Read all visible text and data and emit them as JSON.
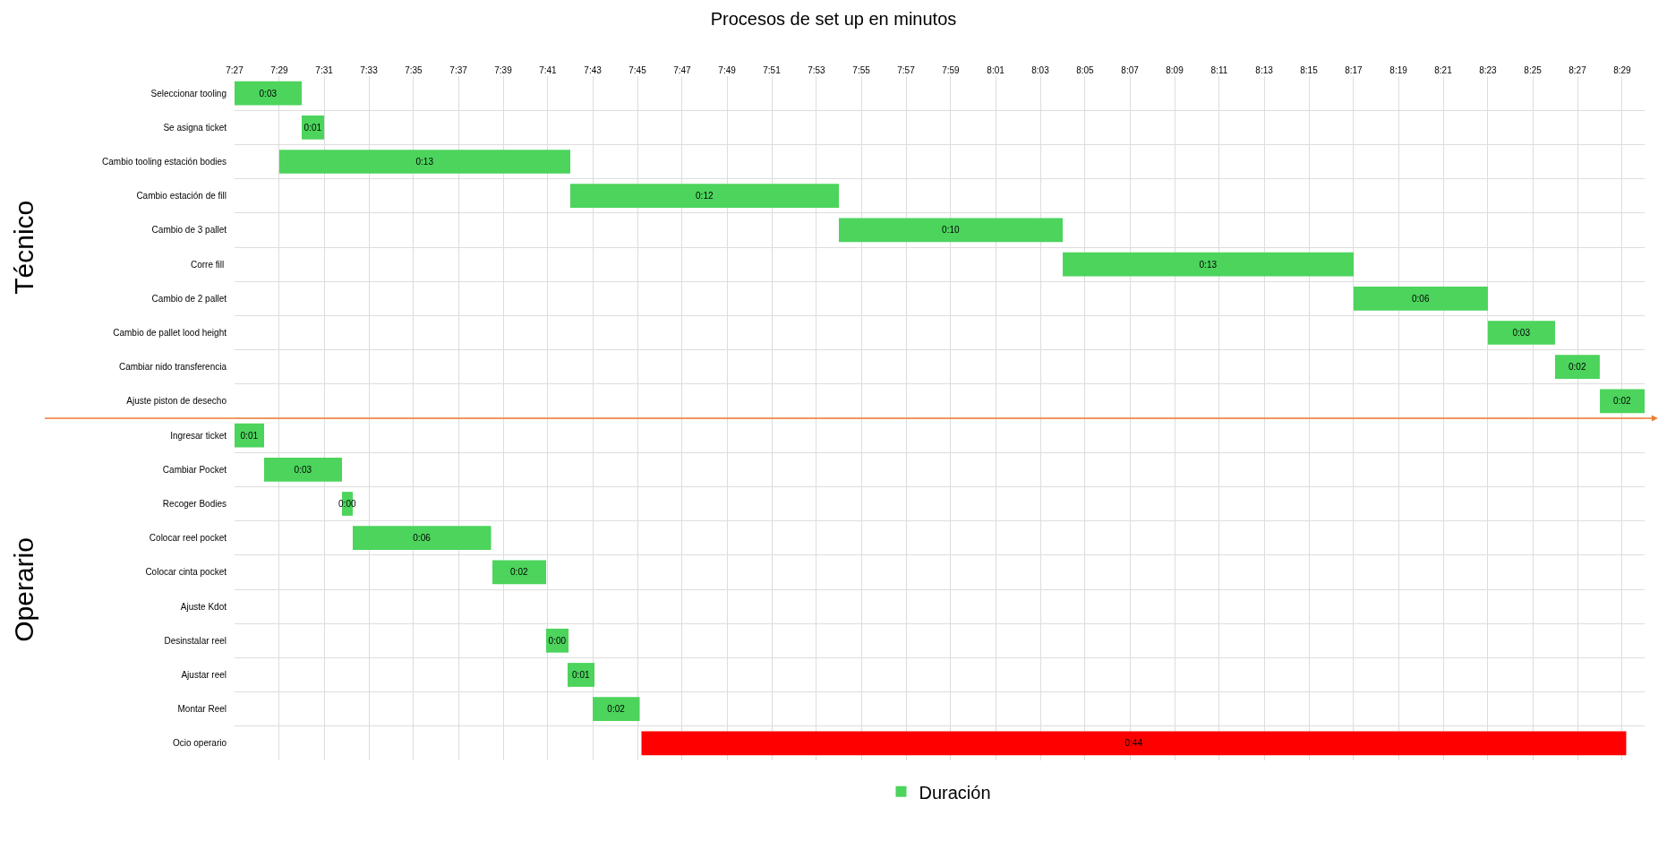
{
  "chart_data": {
    "type": "bar",
    "orientation": "horizontal",
    "title": "Procesos de set up en minutos",
    "categories": [
      "Seleccionar tooling",
      "Se asigna ticket",
      "Cambio tooling estación bodies",
      "Cambio estación de fill",
      "Cambio de 3 pallet",
      "Corre fill ",
      "Cambio de 2 pallet",
      "Cambio de pallet lood height",
      "Cambiar nido transferencia",
      "Ajuste piston de desecho",
      "Ingresar ticket",
      "Cambiar Pocket",
      "Recoger Bodies",
      "Colocar reel pocket",
      "Colocar cinta pocket",
      "Ajuste Kdot",
      "Desinstalar reel",
      "Ajustar reel",
      "Montar Reel",
      "Ocio operario"
    ],
    "series": [
      {
        "name": "Duración",
        "base": [
          7.45,
          7.5,
          7.4833,
          7.7,
          7.9,
          8.0667,
          8.2833,
          8.3833,
          8.4333,
          8.4667,
          7.45,
          7.472,
          7.53,
          7.538,
          7.642,
          null,
          7.682,
          7.698,
          7.7167,
          7.753
        ],
        "color": "#4cd45c",
        "colors": [
          "#4cd45c",
          "#4cd45c",
          "#4cd45c",
          "#4cd45c",
          "#4cd45c",
          "#4cd45c",
          "#4cd45c",
          "#4cd45c",
          "#4cd45c",
          "#4cd45c",
          "#4cd45c",
          "#4cd45c",
          "#4cd45c",
          "#4cd45c",
          "#4cd45c",
          "#4cd45c",
          "#4cd45c",
          "#4cd45c",
          "#4cd45c",
          "#ff0000"
        ],
        "values": [
          0.05,
          0.0167,
          0.2167,
          0.2,
          0.1667,
          0.2167,
          0.1,
          0.05,
          0.0333,
          0.0333,
          0.022,
          0.058,
          0.008,
          0.103,
          0.04,
          null,
          0.0167,
          0.02,
          0.035,
          0.7333
        ],
        "value_labels": [
          "0:03",
          "0:01",
          "0:13",
          "0:12",
          "0:10",
          "0:13",
          "0:06",
          "0:03",
          "0:02",
          "0:02",
          "0:01",
          "0:03",
          "0:00",
          "0:06",
          "0:02",
          null,
          "0:00",
          "0:01",
          "0:02",
          "0:44"
        ]
      }
    ],
    "xlim": [
      7.45,
      8.5
    ],
    "xticks": [
      {
        "value": 7.45,
        "label": "7:27"
      },
      {
        "value": 7.4833,
        "label": "7:29"
      },
      {
        "value": 7.5167,
        "label": "7:31"
      },
      {
        "value": 7.55,
        "label": "7:33"
      },
      {
        "value": 7.5833,
        "label": "7:35"
      },
      {
        "value": 7.6167,
        "label": "7:37"
      },
      {
        "value": 7.65,
        "label": "7:39"
      },
      {
        "value": 7.6833,
        "label": "7:41"
      },
      {
        "value": 7.7167,
        "label": "7:43"
      },
      {
        "value": 7.75,
        "label": "7:45"
      },
      {
        "value": 7.7833,
        "label": "7:47"
      },
      {
        "value": 7.8167,
        "label": "7:49"
      },
      {
        "value": 7.85,
        "label": "7:51"
      },
      {
        "value": 7.8833,
        "label": "7:53"
      },
      {
        "value": 7.9167,
        "label": "7:55"
      },
      {
        "value": 7.95,
        "label": "7:57"
      },
      {
        "value": 7.9833,
        "label": "7:59"
      },
      {
        "value": 8.0167,
        "label": "8:01"
      },
      {
        "value": 8.05,
        "label": "8:03"
      },
      {
        "value": 8.0833,
        "label": "8:05"
      },
      {
        "value": 8.1167,
        "label": "8:07"
      },
      {
        "value": 8.15,
        "label": "8:09"
      },
      {
        "value": 8.1833,
        "label": "8:11"
      },
      {
        "value": 8.2167,
        "label": "8:13"
      },
      {
        "value": 8.25,
        "label": "8:15"
      },
      {
        "value": 8.2833,
        "label": "8:17"
      },
      {
        "value": 8.3167,
        "label": "8:19"
      },
      {
        "value": 8.35,
        "label": "8:21"
      },
      {
        "value": 8.3833,
        "label": "8:23"
      },
      {
        "value": 8.4167,
        "label": "8:25"
      },
      {
        "value": 8.45,
        "label": "8:27"
      },
      {
        "value": 8.4833,
        "label": "8:29"
      }
    ],
    "annotations": [
      "Técnico",
      "Operario"
    ],
    "grid": true,
    "legend": "bottom"
  }
}
